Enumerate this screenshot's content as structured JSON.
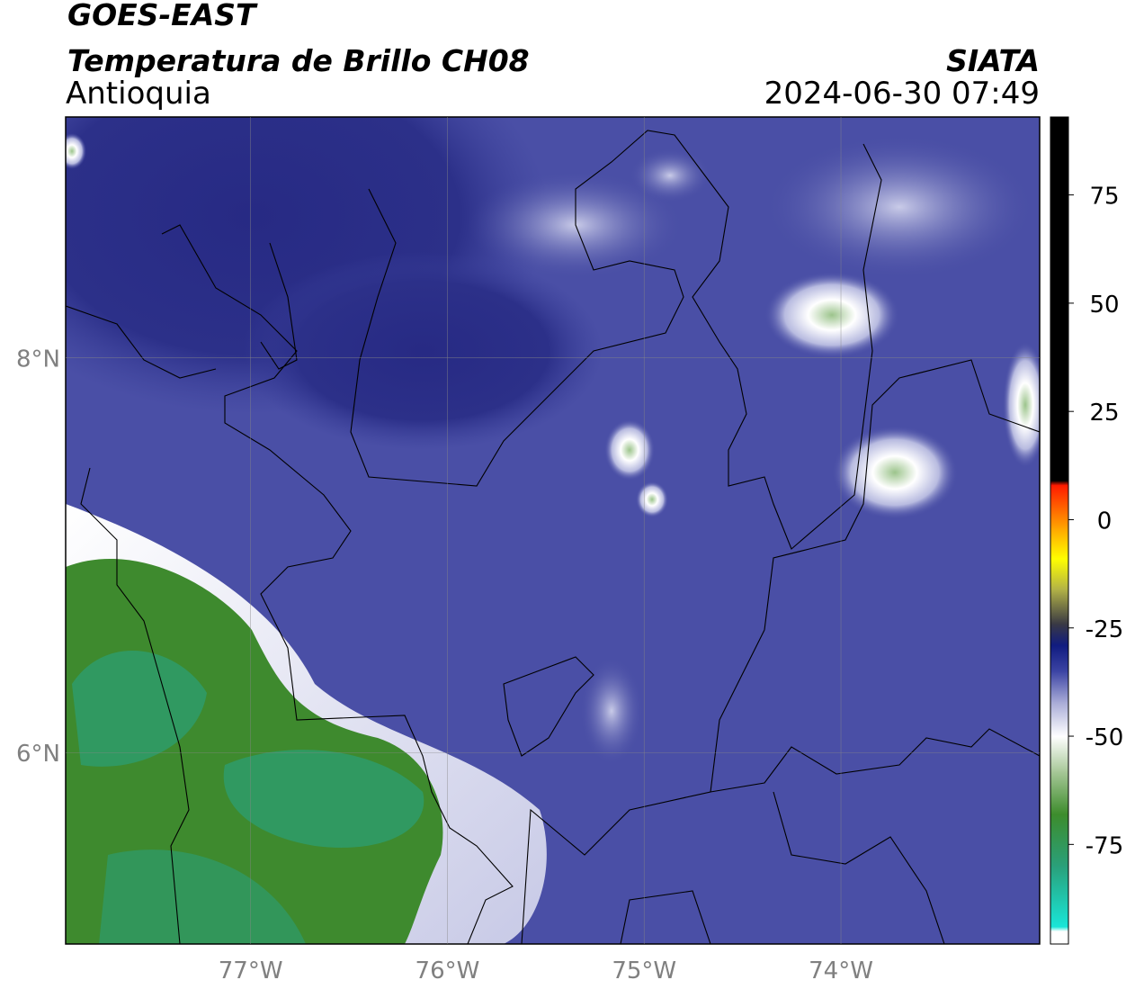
{
  "chart_data": {
    "type": "map",
    "title": "GOES-EAST",
    "subtitle": "Temperatura de Brillo CH08",
    "region": "Antioquia",
    "source": "SIATA",
    "timestamp": "2024-06-30 07:49",
    "xlim": [
      -77.94,
      -72.99
    ],
    "ylim": [
      5.03,
      9.22
    ],
    "xticks": [
      {
        "value": -77,
        "label": "77°W"
      },
      {
        "value": -76,
        "label": "76°W"
      },
      {
        "value": -75,
        "label": "75°W"
      },
      {
        "value": -74,
        "label": "74°W"
      }
    ],
    "yticks": [
      {
        "value": 8,
        "label": "8°N"
      },
      {
        "value": 6,
        "label": "6°N"
      }
    ],
    "grid": true,
    "colorbar": {
      "lim": [
        -98,
        93
      ],
      "ticks": [
        75,
        50,
        25,
        0,
        -25,
        -50,
        -75
      ],
      "stops": [
        {
          "value": -98,
          "color": "#ffffff"
        },
        {
          "value": -95,
          "color": "#ffffff"
        },
        {
          "value": -94,
          "color": "#19e6d8"
        },
        {
          "value": -80,
          "color": "#2aa07a"
        },
        {
          "value": -68,
          "color": "#3d8c2c"
        },
        {
          "value": -58,
          "color": "#a9c99a"
        },
        {
          "value": -50,
          "color": "#ffffff"
        },
        {
          "value": -42,
          "color": "#a6a9d6"
        },
        {
          "value": -35,
          "color": "#3c44a4"
        },
        {
          "value": -29,
          "color": "#101b80"
        },
        {
          "value": -24,
          "color": "#3a3a44"
        },
        {
          "value": -16,
          "color": "#b3b346"
        },
        {
          "value": -9,
          "color": "#ffff00"
        },
        {
          "value": -2,
          "color": "#ffa500"
        },
        {
          "value": 8,
          "color": "#ff1a00"
        },
        {
          "value": 9,
          "color": "#000000"
        },
        {
          "value": 93,
          "color": "#000000"
        }
      ]
    }
  }
}
